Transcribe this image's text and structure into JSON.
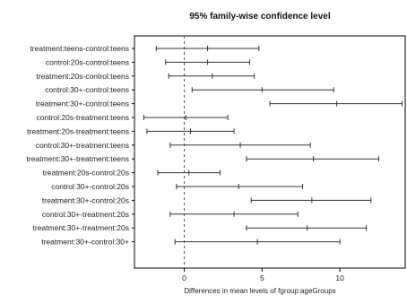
{
  "chart_data": {
    "type": "interval",
    "title": "95% family-wise confidence level",
    "xlabel": "Differences in mean levels of fgroup:ageGroups",
    "ylabel": "",
    "xlim": [
      -3.2,
      14.2
    ],
    "xticks": [
      0,
      5,
      10
    ],
    "reference_line": 0,
    "intervals": [
      {
        "label": "treatment:teens-control:teens",
        "lwr": -1.8,
        "est": 1.5,
        "upr": 4.8
      },
      {
        "label": "control:20s-control:teens",
        "lwr": -1.2,
        "est": 1.5,
        "upr": 4.2
      },
      {
        "label": "treatment:20s-control:teens",
        "lwr": -1.0,
        "est": 1.8,
        "upr": 4.5
      },
      {
        "label": "control:30+-control:teens",
        "lwr": 0.5,
        "est": 5.0,
        "upr": 9.6
      },
      {
        "label": "treatment:30+-control:teens",
        "lwr": 5.5,
        "est": 9.8,
        "upr": 14.0
      },
      {
        "label": "control:20s-treatment:teens",
        "lwr": -2.6,
        "est": 0.1,
        "upr": 2.8
      },
      {
        "label": "treatment:20s-treatment:teens",
        "lwr": -2.4,
        "est": 0.4,
        "upr": 3.2
      },
      {
        "label": "control:30+-treatment:teens",
        "lwr": -0.9,
        "est": 3.6,
        "upr": 8.1
      },
      {
        "label": "treatment:30+-treatment:teens",
        "lwr": 4.0,
        "est": 8.3,
        "upr": 12.5
      },
      {
        "label": "treatment:20s-control:20s",
        "lwr": -1.7,
        "est": 0.3,
        "upr": 2.3
      },
      {
        "label": "control:30+-control:20s",
        "lwr": -0.5,
        "est": 3.5,
        "upr": 7.6
      },
      {
        "label": "treatment:30+-control:20s",
        "lwr": 4.3,
        "est": 8.2,
        "upr": 12.0
      },
      {
        "label": "control:30+-treatment:20s",
        "lwr": -0.9,
        "est": 3.2,
        "upr": 7.3
      },
      {
        "label": "treatment:30+-treatment:20s",
        "lwr": 4.0,
        "est": 7.9,
        "upr": 11.7
      },
      {
        "label": "treatment:30+-control:30+",
        "lwr": -0.6,
        "est": 4.7,
        "upr": 10.0
      }
    ],
    "grid": false,
    "colors": {
      "interval": "#333333",
      "reference": "#555555",
      "axis": "#000000"
    }
  }
}
